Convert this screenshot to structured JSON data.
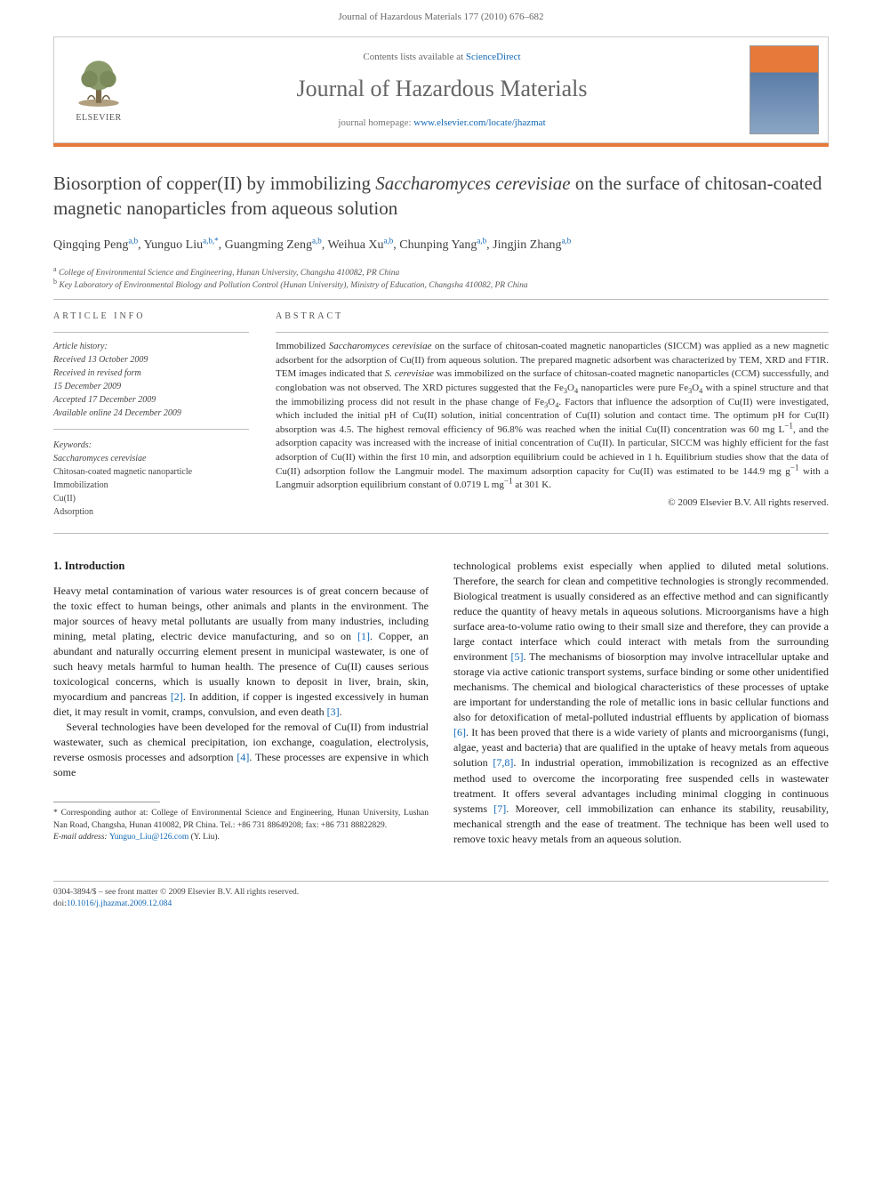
{
  "header": {
    "citation": "Journal of Hazardous Materials 177 (2010) 676–682"
  },
  "contentsBox": {
    "availText": "Contents lists available at ",
    "availLink": "ScienceDirect",
    "journalName": "Journal of Hazardous Materials",
    "homepageLabel": "journal homepage: ",
    "homepageUrl": "www.elsevier.com/locate/jhazmat",
    "publisher": "ELSEVIER"
  },
  "article": {
    "titlePre": "Biosorption of copper(II) by immobilizing ",
    "titleItalic": "Saccharomyces cerevisiae",
    "titlePost": " on the surface of chitosan-coated magnetic nanoparticles from aqueous solution",
    "authors": [
      {
        "name": "Qingqing Peng",
        "aff": "a,b"
      },
      {
        "name": "Yunguo Liu",
        "aff": "a,b,",
        "corr": "*"
      },
      {
        "name": "Guangming Zeng",
        "aff": "a,b"
      },
      {
        "name": "Weihua Xu",
        "aff": "a,b"
      },
      {
        "name": "Chunping Yang",
        "aff": "a,b"
      },
      {
        "name": "Jingjin Zhang",
        "aff": "a,b"
      }
    ],
    "affiliations": [
      {
        "label": "a",
        "text": "College of Environmental Science and Engineering, Hunan University, Changsha 410082, PR China"
      },
      {
        "label": "b",
        "text": "Key Laboratory of Environmental Biology and Pollution Control (Hunan University), Ministry of Education, Changsha 410082, PR China"
      }
    ]
  },
  "info": {
    "infoHeading": "ARTICLE INFO",
    "historyLabel": "Article history:",
    "history": [
      "Received 13 October 2009",
      "Received in revised form",
      "15 December 2009",
      "Accepted 17 December 2009",
      "Available online 24 December 2009"
    ],
    "keywordsLabel": "Keywords:",
    "keywords": [
      {
        "text": "Saccharomyces cerevisiae",
        "italic": true
      },
      {
        "text": "Chitosan-coated magnetic nanoparticle"
      },
      {
        "text": "Immobilization"
      },
      {
        "text": "Cu(II)"
      },
      {
        "text": "Adsorption"
      }
    ]
  },
  "abstract": {
    "heading": "ABSTRACT",
    "text": "Immobilized <em>Saccharomyces cerevisiae</em> on the surface of chitosan-coated magnetic nanoparticles (SICCM) was applied as a new magnetic adsorbent for the adsorption of Cu(II) from aqueous solution. The prepared magnetic adsorbent was characterized by TEM, XRD and FTIR. TEM images indicated that <em>S. cerevisiae</em> was immobilized on the surface of chitosan-coated magnetic nanoparticles (CCM) successfully, and conglobation was not observed. The XRD pictures suggested that the Fe<sub>3</sub>O<sub>4</sub> nanoparticles were pure Fe<sub>3</sub>O<sub>4</sub> with a spinel structure and that the immobilizing process did not result in the phase change of Fe<sub>3</sub>O<sub>4</sub>. Factors that influence the adsorption of Cu(II) were investigated, which included the initial pH of Cu(II) solution, initial concentration of Cu(II) solution and contact time. The optimum pH for Cu(II) absorption was 4.5. The highest removal efficiency of 96.8% was reached when the initial Cu(II) concentration was 60 mg L<sup>−1</sup>, and the adsorption capacity was increased with the increase of initial concentration of Cu(II). In particular, SICCM was highly efficient for the fast adsorption of Cu(II) within the first 10 min, and adsorption equilibrium could be achieved in 1 h. Equilibrium studies show that the data of Cu(II) adsorption follow the Langmuir model. The maximum adsorption capacity for Cu(II) was estimated to be 144.9 mg g<sup>−1</sup> with a Langmuir adsorption equilibrium constant of 0.0719 L mg<sup>−1</sup> at 301 K.",
    "copyright": "© 2009 Elsevier B.V. All rights reserved."
  },
  "body": {
    "section1Heading": "1. Introduction",
    "leftParas": [
      "Heavy metal contamination of various water resources is of great concern because of the toxic effect to human beings, other animals and plants in the environment. The major sources of heavy metal pollutants are usually from many industries, including mining, metal plating, electric device manufacturing, and so on <span class=\"cite\">[1]</span>. Copper, an abundant and naturally occurring element present in municipal wastewater, is one of such heavy metals harmful to human health. The presence of Cu(II) causes serious toxicological concerns, which is usually known to deposit in liver, brain, skin, myocardium and pancreas <span class=\"cite\">[2]</span>. In addition, if copper is ingested excessively in human diet, it may result in vomit, cramps, convulsion, and even death <span class=\"cite\">[3]</span>.",
      "Several technologies have been developed for the removal of Cu(II) from industrial wastewater, such as chemical precipitation, ion exchange, coagulation, electrolysis, reverse osmosis processes and adsorption <span class=\"cite\">[4]</span>. These processes are expensive in which some"
    ],
    "rightParas": [
      "technological problems exist especially when applied to diluted metal solutions. Therefore, the search for clean and competitive technologies is strongly recommended. Biological treatment is usually considered as an effective method and can significantly reduce the quantity of heavy metals in aqueous solutions. Microorganisms have a high surface area-to-volume ratio owing to their small size and therefore, they can provide a large contact interface which could interact with metals from the surrounding environment <span class=\"cite\">[5]</span>. The mechanisms of biosorption may involve intracellular uptake and storage via active cationic transport systems, surface binding or some other unidentified mechanisms. The chemical and biological characteristics of these processes of uptake are important for understanding the role of metallic ions in basic cellular functions and also for detoxification of metal-polluted industrial effluents by application of biomass <span class=\"cite\">[6]</span>. It has been proved that there is a wide variety of plants and microorganisms (fungi, algae, yeast and bacteria) that are qualified in the uptake of heavy metals from aqueous solution <span class=\"cite\">[7,8]</span>. In industrial operation, immobilization is recognized as an effective method used to overcome the incorporating free suspended cells in wastewater treatment. It offers several advantages including minimal clogging in continuous systems <span class=\"cite\">[7]</span>. Moreover, cell immobilization can enhance its stability, reusability, mechanical strength and the ease of treatment. The technique has been well used to remove toxic heavy metals from an aqueous solution."
    ]
  },
  "footnotes": {
    "corrLabel": "* Corresponding author at: ",
    "corrText": "College of Environmental Science and Engineering, Hunan University, Lushan Nan Road, Changsha, Hunan 410082, PR China. Tel.: +86 731 88649208; fax: +86 731 88822829.",
    "emailLabel": "E-mail address: ",
    "email": "Yunguo_Liu@126.com",
    "emailName": " (Y. Liu)."
  },
  "bottom": {
    "issn": "0304-3894/$ – see front matter © 2009 Elsevier B.V. All rights reserved.",
    "doiLabel": "doi:",
    "doi": "10.1016/j.jhazmat.2009.12.084"
  },
  "colors": {
    "accent": "#e77a3a",
    "link": "#1067b5",
    "textGray": "#656565"
  }
}
